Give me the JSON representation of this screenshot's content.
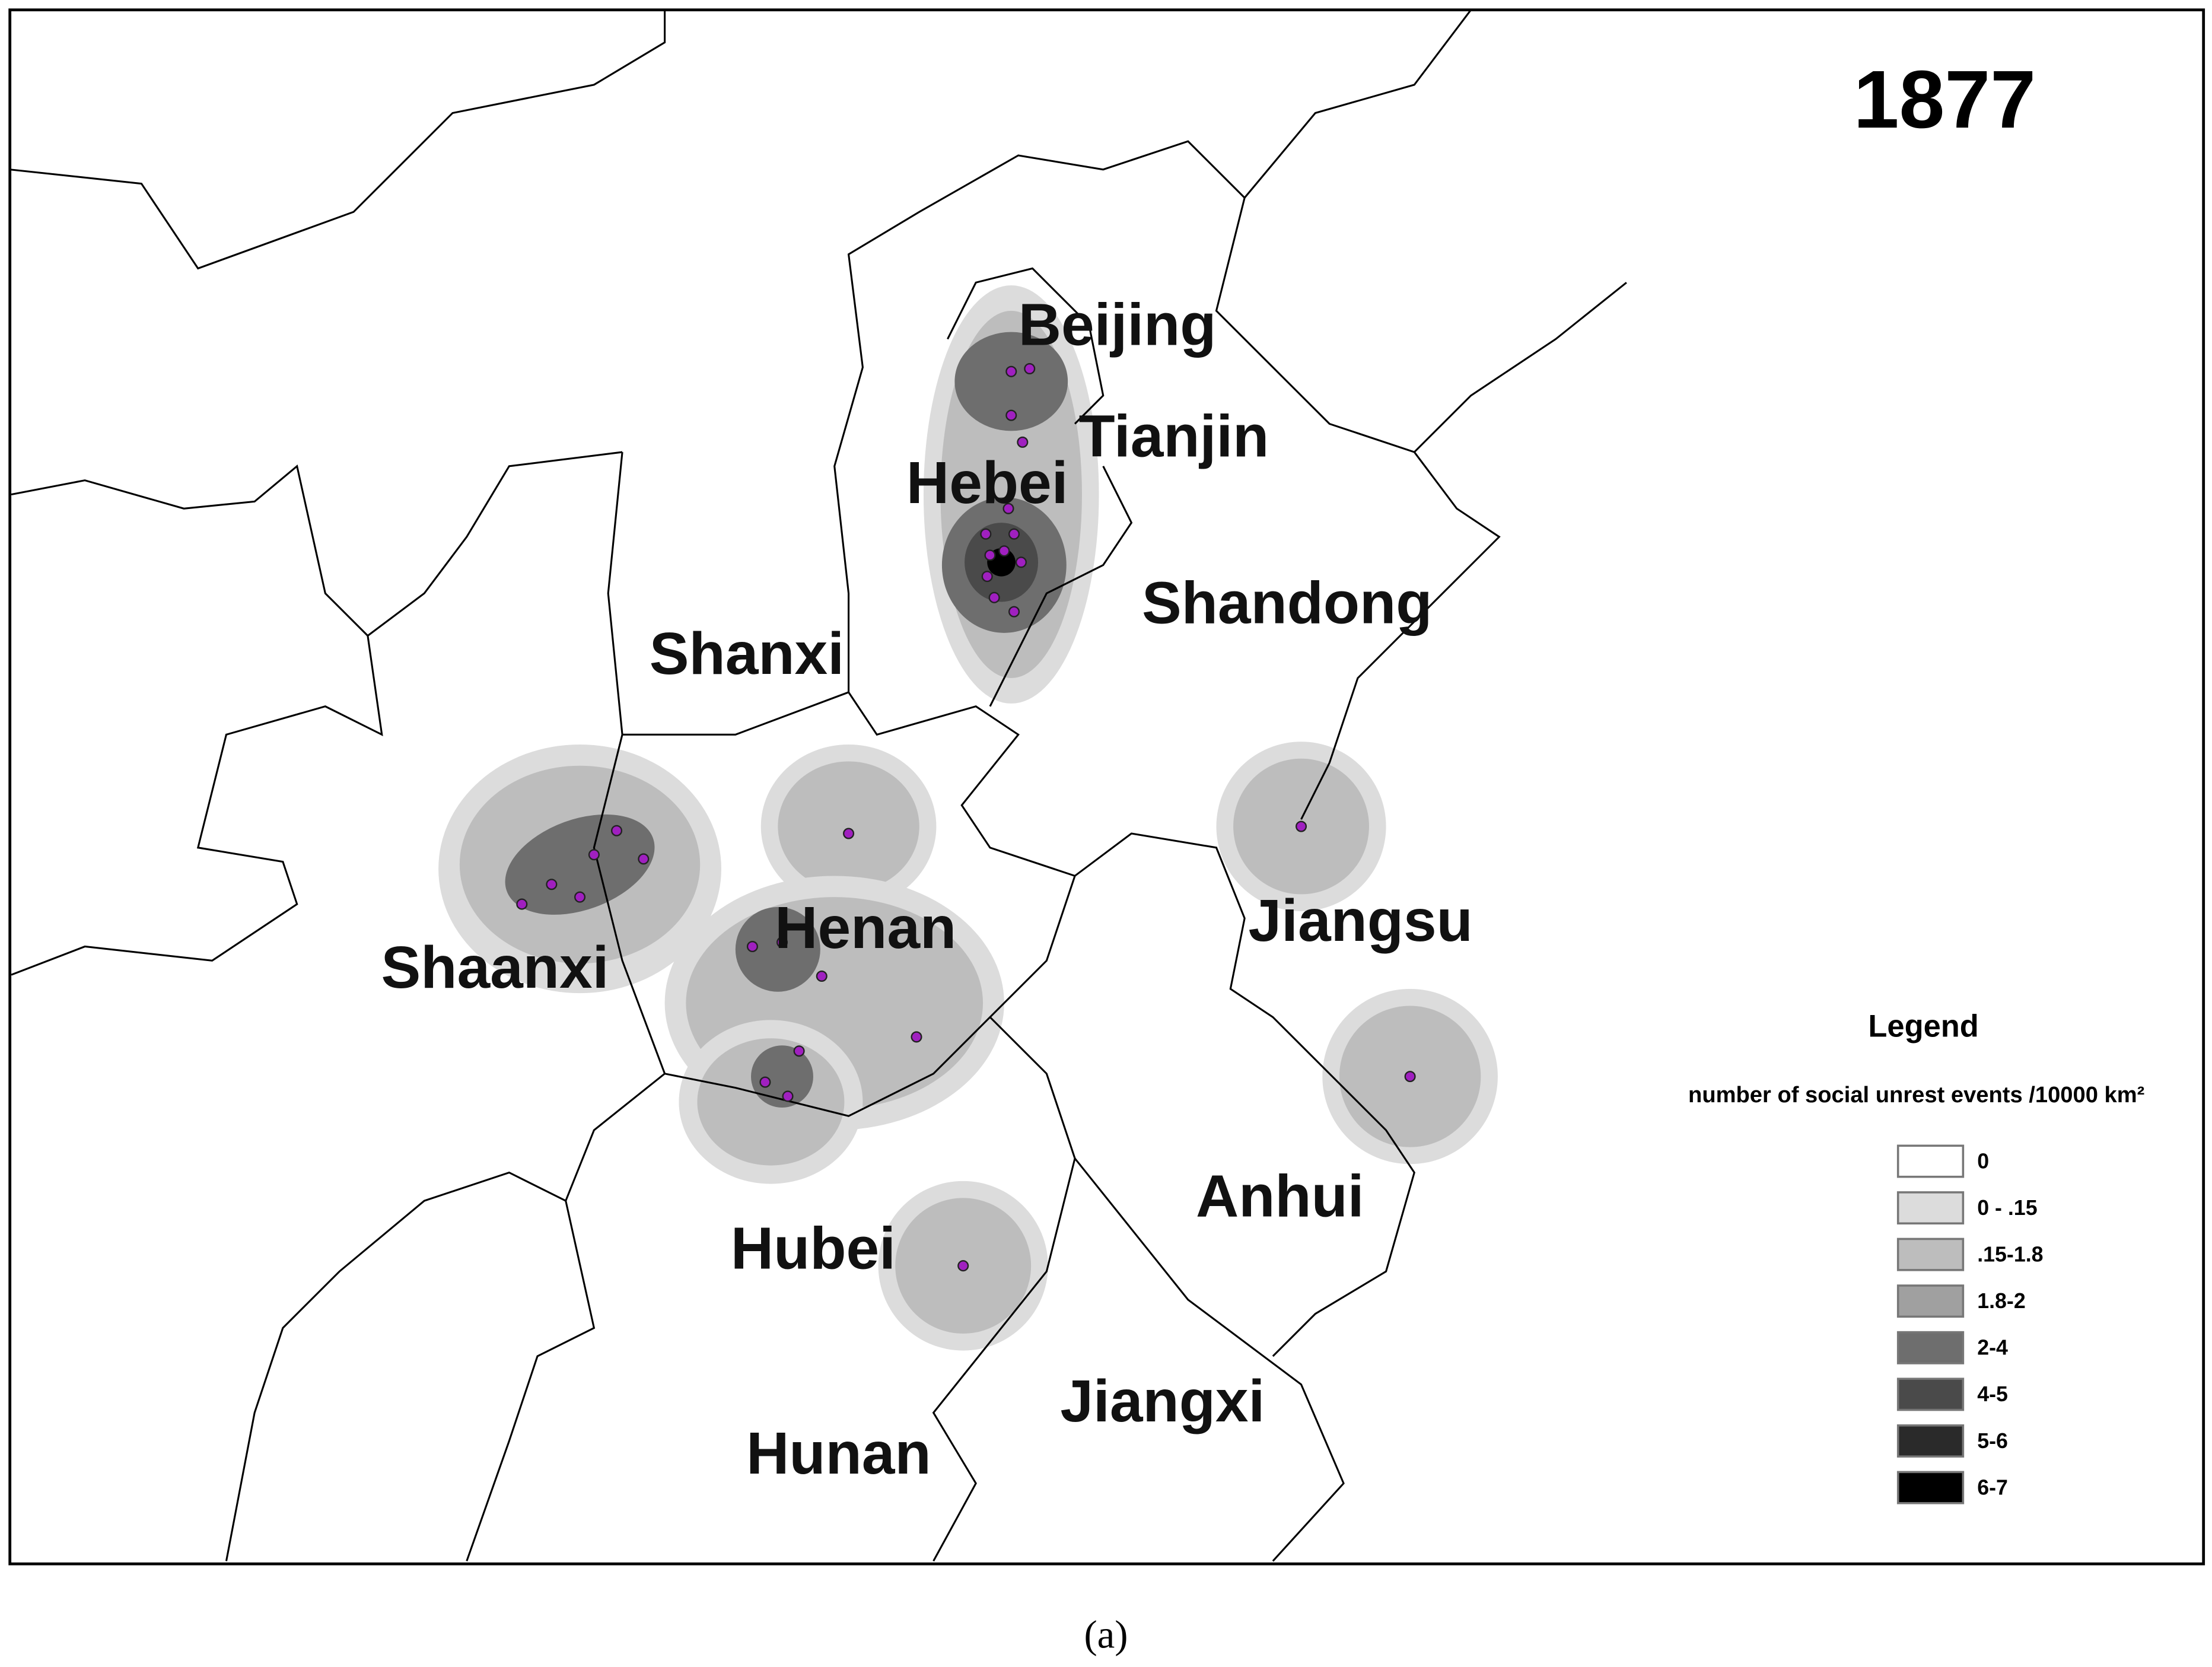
{
  "map": {
    "year": "1877",
    "regions": [
      "Beijing",
      "Tianjin",
      "Hebei",
      "Shandong",
      "Shanxi",
      "Shaanxi",
      "Henan",
      "Jiangsu",
      "Anhui",
      "Hubei",
      "Jiangxi",
      "Hunan"
    ],
    "legend": {
      "title": "Legend",
      "subtitle": "number of social unrest events /10000 km²",
      "entries": [
        {
          "label": "0",
          "color": "#ffffff"
        },
        {
          "label": "0 - .15",
          "color": "#dcdcdc"
        },
        {
          "label": ".15-1.8",
          "color": "#bdbdbd"
        },
        {
          "label": "1.8-2",
          "color": "#a0a0a0"
        },
        {
          "label": "2-4",
          "color": "#6e6e6e"
        },
        {
          "label": "4-5",
          "color": "#4a4a4a"
        },
        {
          "label": "5-6",
          "color": "#2a2a2a"
        },
        {
          "label": "6-7",
          "color": "#000000"
        }
      ]
    }
  },
  "caption": "(a)"
}
